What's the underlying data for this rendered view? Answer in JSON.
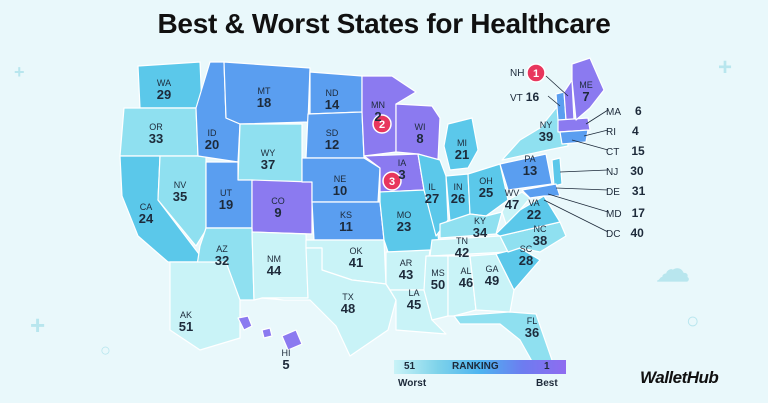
{
  "title": "Best & Worst States for Healthcare",
  "brand": "WalletHub",
  "legend": {
    "left_value": "51",
    "center_label": "RANKING",
    "right_value": "1",
    "left_label": "Worst",
    "right_label": "Best"
  },
  "colors": {
    "rank_1_to_10": "#8b7af0",
    "rank_11_to_20": "#5a9ef0",
    "rank_21_to_30": "#5bc8ea",
    "rank_31_to_40": "#8fe0f0",
    "rank_41_to_51": "#c9f3f7",
    "top3_badge": "#e8365d"
  },
  "states": [
    {
      "abbr": "WA",
      "rank": "29"
    },
    {
      "abbr": "OR",
      "rank": "33"
    },
    {
      "abbr": "CA",
      "rank": "24"
    },
    {
      "abbr": "NV",
      "rank": "35"
    },
    {
      "abbr": "ID",
      "rank": "20"
    },
    {
      "abbr": "MT",
      "rank": "18"
    },
    {
      "abbr": "WY",
      "rank": "37"
    },
    {
      "abbr": "UT",
      "rank": "19"
    },
    {
      "abbr": "AZ",
      "rank": "32"
    },
    {
      "abbr": "CO",
      "rank": "9"
    },
    {
      "abbr": "NM",
      "rank": "44"
    },
    {
      "abbr": "ND",
      "rank": "14"
    },
    {
      "abbr": "SD",
      "rank": "12"
    },
    {
      "abbr": "NE",
      "rank": "10"
    },
    {
      "abbr": "KS",
      "rank": "11"
    },
    {
      "abbr": "OK",
      "rank": "41"
    },
    {
      "abbr": "TX",
      "rank": "48"
    },
    {
      "abbr": "MN",
      "rank": "2"
    },
    {
      "abbr": "IA",
      "rank": "3"
    },
    {
      "abbr": "MO",
      "rank": "23"
    },
    {
      "abbr": "AR",
      "rank": "43"
    },
    {
      "abbr": "LA",
      "rank": "45"
    },
    {
      "abbr": "WI",
      "rank": "8"
    },
    {
      "abbr": "IL",
      "rank": "27"
    },
    {
      "abbr": "MI",
      "rank": "21"
    },
    {
      "abbr": "IN",
      "rank": "26"
    },
    {
      "abbr": "OH",
      "rank": "25"
    },
    {
      "abbr": "KY",
      "rank": "34"
    },
    {
      "abbr": "TN",
      "rank": "42"
    },
    {
      "abbr": "MS",
      "rank": "50"
    },
    {
      "abbr": "AL",
      "rank": "46"
    },
    {
      "abbr": "GA",
      "rank": "49"
    },
    {
      "abbr": "FL",
      "rank": "36"
    },
    {
      "abbr": "SC",
      "rank": "28"
    },
    {
      "abbr": "NC",
      "rank": "38"
    },
    {
      "abbr": "VA",
      "rank": "22"
    },
    {
      "abbr": "WV",
      "rank": "47"
    },
    {
      "abbr": "PA",
      "rank": "13"
    },
    {
      "abbr": "NY",
      "rank": "39"
    },
    {
      "abbr": "ME",
      "rank": "7"
    },
    {
      "abbr": "AK",
      "rank": "51"
    },
    {
      "abbr": "HI",
      "rank": "5"
    }
  ],
  "northeast": [
    {
      "abbr": "NH",
      "rank": "1"
    },
    {
      "abbr": "VT",
      "rank": "16"
    },
    {
      "abbr": "MA",
      "rank": "6"
    },
    {
      "abbr": "RI",
      "rank": "4"
    },
    {
      "abbr": "CT",
      "rank": "15"
    },
    {
      "abbr": "NJ",
      "rank": "30"
    },
    {
      "abbr": "DE",
      "rank": "31"
    },
    {
      "abbr": "MD",
      "rank": "17"
    },
    {
      "abbr": "DC",
      "rank": "40"
    }
  ]
}
